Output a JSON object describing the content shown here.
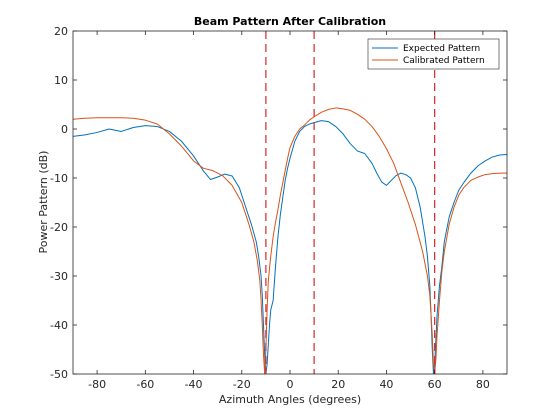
{
  "chart_data": {
    "type": "line",
    "title": "Beam Pattern After Calibration",
    "xlabel": "Azimuth Angles (degrees)",
    "ylabel": "Power Pattern (dB)",
    "xlim": [
      -90,
      90
    ],
    "ylim": [
      -50,
      20
    ],
    "xticks": [
      -80,
      -60,
      -40,
      -20,
      0,
      20,
      40,
      60,
      80
    ],
    "yticks": [
      -50,
      -40,
      -30,
      -20,
      -10,
      0,
      10,
      20
    ],
    "grid": false,
    "legend_position": "top-right",
    "vlines": [
      {
        "x": -10,
        "color": "#d62728",
        "style": "dashed"
      },
      {
        "x": 10,
        "color": "#d62728",
        "style": "dashed"
      },
      {
        "x": 60,
        "color": "#d62728",
        "style": "dashed"
      }
    ],
    "series": [
      {
        "name": "Expected Pattern",
        "color": "#0072bd",
        "x": [
          -90,
          -85,
          -80,
          -75,
          -70,
          -65,
          -60,
          -55,
          -50,
          -45,
          -40,
          -36,
          -33,
          -30,
          -27,
          -24,
          -21,
          -18,
          -16,
          -14,
          -13,
          -12,
          -11.5,
          -11,
          -10.5,
          -10,
          -9.5,
          -9,
          -8.5,
          -8,
          -7,
          -6,
          -5,
          -4,
          -3,
          -2,
          -1,
          0,
          2,
          4,
          6,
          8,
          10,
          13,
          16,
          19,
          22,
          25,
          28,
          31,
          34,
          36,
          38,
          40,
          42,
          44,
          46,
          48,
          50,
          52,
          54,
          56,
          57,
          58,
          58.5,
          59,
          59.5,
          60,
          60.5,
          61,
          62,
          63,
          64,
          66,
          68,
          70,
          72,
          75,
          78,
          81,
          84,
          87,
          90
        ],
        "y": [
          -1.5,
          -1.2,
          -0.7,
          0,
          -0.5,
          0.3,
          0.7,
          0.5,
          -0.5,
          -2.5,
          -5.5,
          -8.5,
          -10.3,
          -9.8,
          -9.2,
          -9.6,
          -12,
          -16.5,
          -19.5,
          -23,
          -26,
          -30,
          -34,
          -40,
          -46,
          -50,
          -48,
          -44,
          -40,
          -37,
          -35,
          -28,
          -22,
          -17.5,
          -14,
          -10.5,
          -8,
          -6,
          -2.5,
          -0.5,
          0.5,
          1,
          1.3,
          1.7,
          1.5,
          0.5,
          -1,
          -3,
          -4.5,
          -5,
          -7,
          -9,
          -10.8,
          -11.5,
          -10.5,
          -9.5,
          -9,
          -9.3,
          -10,
          -12,
          -16,
          -22,
          -26,
          -32,
          -38,
          -45,
          -50,
          -48,
          -43,
          -38,
          -32,
          -28,
          -23,
          -18,
          -15,
          -12.5,
          -11,
          -9,
          -7.5,
          -6.5,
          -5.7,
          -5.3,
          -5.2
        ]
      },
      {
        "name": "Calibrated Pattern",
        "color": "#d95319",
        "x": [
          -90,
          -85,
          -80,
          -75,
          -70,
          -65,
          -60,
          -55,
          -50,
          -45,
          -40,
          -36,
          -32,
          -28,
          -24,
          -20,
          -17,
          -15,
          -13.5,
          -12.5,
          -12,
          -11.5,
          -11,
          -10.5,
          -10,
          -9.5,
          -9,
          -8,
          -7,
          -6,
          -5,
          -4,
          -3,
          -2,
          -1,
          0,
          2,
          4,
          6,
          8,
          10,
          13,
          16,
          19,
          22,
          25,
          28,
          31,
          34,
          37,
          40,
          43,
          46,
          49,
          52,
          55,
          57,
          58,
          59,
          59.5,
          60,
          60.5,
          61,
          62,
          63,
          64,
          66,
          68,
          70,
          72,
          75,
          78,
          81,
          84,
          87,
          90
        ],
        "y": [
          2,
          2.2,
          2.3,
          2.3,
          2.3,
          2.2,
          1.8,
          1,
          -1,
          -3.5,
          -6.5,
          -8,
          -8.5,
          -9.5,
          -11.5,
          -15,
          -19.5,
          -23,
          -27,
          -31,
          -35,
          -40,
          -46,
          -50,
          -45,
          -37,
          -31,
          -26,
          -22,
          -19,
          -16.5,
          -13.5,
          -11,
          -8.5,
          -6,
          -3.8,
          -1.5,
          0,
          0.8,
          1.8,
          2.5,
          3.4,
          4,
          4.3,
          4.1,
          3.8,
          3,
          2,
          0.5,
          -1.5,
          -4,
          -7,
          -11,
          -15,
          -19.5,
          -25,
          -30,
          -34,
          -42,
          -48,
          -50,
          -47,
          -42,
          -35,
          -29,
          -25,
          -19.5,
          -16,
          -13.5,
          -12,
          -10.5,
          -9.8,
          -9.3,
          -9.1,
          -9,
          -9
        ]
      }
    ]
  }
}
